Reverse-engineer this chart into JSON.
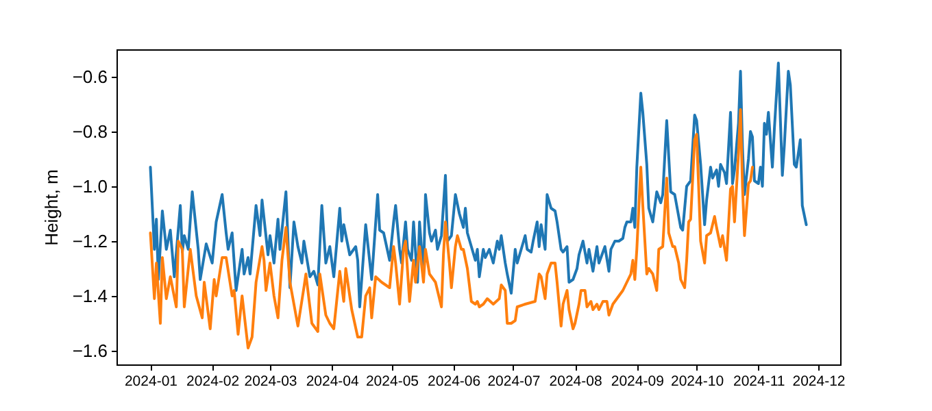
{
  "chart_data": {
    "type": "line",
    "ylabel": "Height, m",
    "xlim": [
      "2023-12-15",
      "2024-12-12"
    ],
    "ylim": [
      -1.65,
      -0.5
    ],
    "xticks": [
      {
        "value": "2024-01",
        "label": "2024-01"
      },
      {
        "value": "2024-02",
        "label": "2024-02"
      },
      {
        "value": "2024-03",
        "label": "2024-03"
      },
      {
        "value": "2024-04",
        "label": "2024-04"
      },
      {
        "value": "2024-05",
        "label": "2024-05"
      },
      {
        "value": "2024-06",
        "label": "2024-06"
      },
      {
        "value": "2024-07",
        "label": "2024-07"
      },
      {
        "value": "2024-08",
        "label": "2024-08"
      },
      {
        "value": "2024-09",
        "label": "2024-09"
      },
      {
        "value": "2024-10",
        "label": "2024-10"
      },
      {
        "value": "2024-11",
        "label": "2024-11"
      },
      {
        "value": "2024-12",
        "label": "2024-12"
      }
    ],
    "yticks": [
      {
        "value": -1.6,
        "label": "−1.6"
      },
      {
        "value": -1.4,
        "label": "−1.4"
      },
      {
        "value": -1.2,
        "label": "−1.2"
      },
      {
        "value": -1.0,
        "label": "−1.0"
      },
      {
        "value": -0.8,
        "label": "−0.8"
      },
      {
        "value": -0.6,
        "label": "−0.6"
      }
    ],
    "series": [
      {
        "color": "#1f77b4",
        "x": [
          "2024-01-01",
          "2024-01-03",
          "2024-01-04",
          "2024-01-05",
          "2024-01-07",
          "2024-01-09",
          "2024-01-11",
          "2024-01-13",
          "2024-01-16",
          "2024-01-17",
          "2024-01-18",
          "2024-01-20",
          "2024-01-22",
          "2024-01-25",
          "2024-01-26",
          "2024-01-29",
          "2024-02-01",
          "2024-02-03",
          "2024-02-06",
          "2024-02-08",
          "2024-02-09",
          "2024-02-11",
          "2024-02-13",
          "2024-02-16",
          "2024-02-17",
          "2024-02-19",
          "2024-02-20",
          "2024-02-23",
          "2024-02-25",
          "2024-02-26",
          "2024-02-29",
          "2024-03-01",
          "2024-03-03",
          "2024-03-05",
          "2024-03-06",
          "2024-03-09",
          "2024-03-11",
          "2024-03-13",
          "2024-03-15",
          "2024-03-17",
          "2024-03-18",
          "2024-03-21",
          "2024-03-23",
          "2024-03-25",
          "2024-03-27",
          "2024-03-29",
          "2024-03-31",
          "2024-04-02",
          "2024-04-05",
          "2024-04-06",
          "2024-04-07",
          "2024-04-10",
          "2024-04-13",
          "2024-04-14",
          "2024-04-15",
          "2024-04-18",
          "2024-04-21",
          "2024-04-24",
          "2024-04-25",
          "2024-04-27",
          "2024-04-30",
          "2024-05-02",
          "2024-05-03",
          "2024-05-05",
          "2024-05-06",
          "2024-05-08",
          "2024-05-09",
          "2024-05-11",
          "2024-05-12",
          "2024-05-14",
          "2024-05-15",
          "2024-05-17",
          "2024-05-18",
          "2024-05-20",
          "2024-05-21",
          "2024-05-23",
          "2024-05-24",
          "2024-05-26",
          "2024-05-28",
          "2024-05-29",
          "2024-05-31",
          "2024-06-02",
          "2024-06-04",
          "2024-06-06",
          "2024-06-07",
          "2024-06-08",
          "2024-06-10",
          "2024-06-12",
          "2024-06-13",
          "2024-06-14",
          "2024-06-16",
          "2024-06-17",
          "2024-06-19",
          "2024-06-21",
          "2024-06-23",
          "2024-06-24",
          "2024-06-25",
          "2024-06-27",
          "2024-06-28",
          "2024-06-30",
          "2024-07-02",
          "2024-07-03",
          "2024-07-05",
          "2024-07-07",
          "2024-07-08",
          "2024-07-10",
          "2024-07-11",
          "2024-07-13",
          "2024-07-14",
          "2024-07-15",
          "2024-07-17",
          "2024-07-18",
          "2024-07-20",
          "2024-07-22",
          "2024-07-23",
          "2024-07-25",
          "2024-07-26",
          "2024-07-28",
          "2024-07-29",
          "2024-07-31",
          "2024-08-02",
          "2024-08-03",
          "2024-08-05",
          "2024-08-07",
          "2024-08-08",
          "2024-08-10",
          "2024-08-12",
          "2024-08-13",
          "2024-08-15",
          "2024-08-16",
          "2024-08-18",
          "2024-08-19",
          "2024-08-21",
          "2024-08-23",
          "2024-08-25",
          "2024-08-26",
          "2024-08-27",
          "2024-08-29",
          "2024-08-30",
          "2024-08-31",
          "2024-09-01",
          "2024-09-03",
          "2024-09-04",
          "2024-09-06",
          "2024-09-07",
          "2024-09-09",
          "2024-09-11",
          "2024-09-13",
          "2024-09-14",
          "2024-09-16",
          "2024-09-18",
          "2024-09-20",
          "2024-09-21",
          "2024-09-23",
          "2024-09-24",
          "2024-09-26",
          "2024-09-28",
          "2024-09-30",
          "2024-10-01",
          "2024-10-03",
          "2024-10-05",
          "2024-10-06",
          "2024-10-08",
          "2024-10-09",
          "2024-10-11",
          "2024-10-12",
          "2024-10-13",
          "2024-10-15",
          "2024-10-16",
          "2024-10-18",
          "2024-10-19",
          "2024-10-20",
          "2024-10-22",
          "2024-10-23",
          "2024-10-24",
          "2024-10-25",
          "2024-10-27",
          "2024-10-28",
          "2024-10-29",
          "2024-10-30",
          "2024-11-01",
          "2024-11-02",
          "2024-11-03",
          "2024-11-04",
          "2024-11-05",
          "2024-11-06",
          "2024-11-08",
          "2024-11-09",
          "2024-11-11",
          "2024-11-13",
          "2024-11-14",
          "2024-11-16",
          "2024-11-17",
          "2024-11-19",
          "2024-11-20",
          "2024-11-22",
          "2024-11-23",
          "2024-11-25"
        ],
        "values": [
          -0.93,
          -1.23,
          -1.12,
          -1.34,
          -1.09,
          -1.23,
          -1.16,
          -1.33,
          -1.07,
          -1.24,
          -1.18,
          -1.23,
          -1.02,
          -1.23,
          -1.34,
          -1.21,
          -1.28,
          -1.13,
          -1.03,
          -1.17,
          -1.23,
          -1.17,
          -1.38,
          -1.23,
          -1.32,
          -1.26,
          -1.32,
          -1.07,
          -1.18,
          -1.05,
          -1.25,
          -1.18,
          -1.28,
          -1.12,
          -1.23,
          -1.02,
          -1.37,
          -1.13,
          -1.22,
          -1.28,
          -1.2,
          -1.33,
          -1.31,
          -1.36,
          -1.07,
          -1.28,
          -1.22,
          -1.33,
          -1.08,
          -1.2,
          -1.14,
          -1.25,
          -1.22,
          -1.27,
          -1.44,
          -1.14,
          -1.34,
          -1.03,
          -1.16,
          -1.17,
          -1.27,
          -1.13,
          -1.07,
          -1.23,
          -1.28,
          -1.13,
          -1.23,
          -1.27,
          -1.13,
          -1.35,
          -1.13,
          -1.32,
          -1.03,
          -1.17,
          -1.2,
          -1.16,
          -1.23,
          -1.18,
          -0.96,
          -1.2,
          -1.18,
          -1.03,
          -1.1,
          -1.15,
          -1.08,
          -1.17,
          -1.22,
          -1.27,
          -1.23,
          -1.33,
          -1.23,
          -1.26,
          -1.23,
          -1.28,
          -1.2,
          -1.23,
          -1.18,
          -1.28,
          -1.32,
          -1.39,
          -1.23,
          -1.28,
          -1.23,
          -1.18,
          -1.23,
          -1.24,
          -1.2,
          -1.13,
          -1.22,
          -1.14,
          -1.23,
          -1.03,
          -1.08,
          -1.09,
          -1.13,
          -1.23,
          -1.24,
          -1.22,
          -1.35,
          -1.34,
          -1.3,
          -1.25,
          -1.2,
          -1.28,
          -1.23,
          -1.31,
          -1.22,
          -1.28,
          -1.24,
          -1.22,
          -1.31,
          -1.23,
          -1.2,
          -1.2,
          -1.19,
          -1.15,
          -1.13,
          -1.13,
          -1.08,
          -1.15,
          -0.93,
          -0.66,
          -0.73,
          -0.92,
          -1.08,
          -1.13,
          -1.02,
          -1.06,
          -1.03,
          -0.76,
          -1.02,
          -1.03,
          -1.07,
          -1.15,
          -1.16,
          -1.0,
          -0.98,
          -0.74,
          -0.76,
          -0.92,
          -1.14,
          -1.05,
          -0.93,
          -0.97,
          -0.94,
          -1.0,
          -0.92,
          -0.95,
          -0.99,
          -0.73,
          -0.99,
          -0.94,
          -0.77,
          -0.58,
          -0.86,
          -1.03,
          -0.9,
          -0.8,
          -0.82,
          -0.98,
          -0.99,
          -0.93,
          -1.0,
          -0.77,
          -0.81,
          -0.73,
          -0.93,
          -0.79,
          -0.55,
          -0.96,
          -0.85,
          -0.58,
          -0.63,
          -0.92,
          -0.93,
          -0.83,
          -1.07,
          -1.14
        ]
      },
      {
        "color": "#ff7f0e",
        "x": [
          "2024-01-01",
          "2024-01-03",
          "2024-01-04",
          "2024-01-06",
          "2024-01-07",
          "2024-01-09",
          "2024-01-11",
          "2024-01-14",
          "2024-01-15",
          "2024-01-17",
          "2024-01-18",
          "2024-01-21",
          "2024-01-24",
          "2024-01-27",
          "2024-01-28",
          "2024-01-31",
          "2024-02-02",
          "2024-02-03",
          "2024-02-06",
          "2024-02-08",
          "2024-02-11",
          "2024-02-12",
          "2024-02-14",
          "2024-02-16",
          "2024-02-19",
          "2024-02-21",
          "2024-02-23",
          "2024-02-26",
          "2024-02-27",
          "2024-02-28",
          "2024-03-01",
          "2024-03-03",
          "2024-03-05",
          "2024-03-07",
          "2024-03-09",
          "2024-03-11",
          "2024-03-14",
          "2024-03-15",
          "2024-03-18",
          "2024-03-19",
          "2024-03-22",
          "2024-03-25",
          "2024-03-26",
          "2024-03-29",
          "2024-03-31",
          "2024-04-02",
          "2024-04-05",
          "2024-04-07",
          "2024-04-08",
          "2024-04-11",
          "2024-04-14",
          "2024-04-16",
          "2024-04-18",
          "2024-04-20",
          "2024-04-21",
          "2024-04-23",
          "2024-04-26",
          "2024-04-30",
          "2024-05-02",
          "2024-05-03",
          "2024-05-05",
          "2024-05-07",
          "2024-05-08",
          "2024-05-10",
          "2024-05-12",
          "2024-05-13",
          "2024-05-15",
          "2024-05-17",
          "2024-05-18",
          "2024-05-20",
          "2024-05-23",
          "2024-05-24",
          "2024-05-26",
          "2024-05-27",
          "2024-05-28",
          "2024-05-30",
          "2024-05-31",
          "2024-06-02",
          "2024-06-03",
          "2024-06-05",
          "2024-06-06",
          "2024-06-08",
          "2024-06-10",
          "2024-06-12",
          "2024-06-13",
          "2024-06-14",
          "2024-06-16",
          "2024-06-18",
          "2024-06-21",
          "2024-06-24",
          "2024-06-25",
          "2024-06-27",
          "2024-06-28",
          "2024-06-30",
          "2024-07-02",
          "2024-07-03",
          "2024-07-07",
          "2024-07-12",
          "2024-07-14",
          "2024-07-15",
          "2024-07-17",
          "2024-07-18",
          "2024-07-20",
          "2024-07-22",
          "2024-07-23",
          "2024-07-25",
          "2024-07-26",
          "2024-07-28",
          "2024-07-29",
          "2024-07-31",
          "2024-08-01",
          "2024-08-03",
          "2024-08-04",
          "2024-08-06",
          "2024-08-07",
          "2024-08-09",
          "2024-08-10",
          "2024-08-12",
          "2024-08-13",
          "2024-08-15",
          "2024-08-17",
          "2024-08-18",
          "2024-08-20",
          "2024-08-23",
          "2024-08-25",
          "2024-08-27",
          "2024-08-29",
          "2024-08-30",
          "2024-08-31",
          "2024-09-01",
          "2024-09-03",
          "2024-09-04",
          "2024-09-06",
          "2024-09-07",
          "2024-09-09",
          "2024-09-11",
          "2024-09-12",
          "2024-09-14",
          "2024-09-16",
          "2024-09-17",
          "2024-09-19",
          "2024-09-20",
          "2024-09-22",
          "2024-09-23",
          "2024-09-25",
          "2024-09-26",
          "2024-09-27",
          "2024-09-28",
          "2024-09-30",
          "2024-10-01",
          "2024-10-02",
          "2024-10-03",
          "2024-10-05",
          "2024-10-06",
          "2024-10-08",
          "2024-10-10",
          "2024-10-11",
          "2024-10-13",
          "2024-10-14",
          "2024-10-16",
          "2024-10-18",
          "2024-10-19",
          "2024-10-20",
          "2024-10-22",
          "2024-10-23",
          "2024-10-24",
          "2024-10-25",
          "2024-10-27",
          "2024-10-28",
          "2024-10-29"
        ],
        "values": [
          -1.17,
          -1.41,
          -1.28,
          -1.5,
          -1.26,
          -1.41,
          -1.33,
          -1.44,
          -1.2,
          -1.23,
          -1.44,
          -1.23,
          -1.4,
          -1.48,
          -1.35,
          -1.52,
          -1.34,
          -1.4,
          -1.26,
          -1.26,
          -1.4,
          -1.38,
          -1.54,
          -1.4,
          -1.59,
          -1.55,
          -1.35,
          -1.22,
          -1.27,
          -1.38,
          -1.28,
          -1.4,
          -1.48,
          -1.27,
          -1.15,
          -1.35,
          -1.47,
          -1.51,
          -1.37,
          -1.32,
          -1.5,
          -1.53,
          -1.32,
          -1.47,
          -1.5,
          -1.52,
          -1.31,
          -1.42,
          -1.3,
          -1.45,
          -1.55,
          -1.55,
          -1.4,
          -1.37,
          -1.48,
          -1.33,
          -1.35,
          -1.37,
          -1.22,
          -1.28,
          -1.43,
          -1.23,
          -1.2,
          -1.42,
          -1.27,
          -1.35,
          -1.22,
          -1.35,
          -1.23,
          -1.32,
          -1.35,
          -1.38,
          -1.44,
          -1.25,
          -1.13,
          -1.28,
          -1.37,
          -1.22,
          -1.18,
          -1.23,
          -1.23,
          -1.3,
          -1.42,
          -1.43,
          -1.42,
          -1.44,
          -1.43,
          -1.41,
          -1.43,
          -1.41,
          -1.36,
          -1.38,
          -1.5,
          -1.5,
          -1.49,
          -1.44,
          -1.43,
          -1.42,
          -1.32,
          -1.33,
          -1.41,
          -1.32,
          -1.28,
          -1.28,
          -1.35,
          -1.51,
          -1.43,
          -1.38,
          -1.45,
          -1.52,
          -1.5,
          -1.43,
          -1.38,
          -1.38,
          -1.44,
          -1.42,
          -1.45,
          -1.43,
          -1.45,
          -1.42,
          -1.42,
          -1.47,
          -1.43,
          -1.4,
          -1.38,
          -1.35,
          -1.32,
          -1.27,
          -1.34,
          -1.23,
          -0.93,
          -1.07,
          -1.32,
          -1.3,
          -1.32,
          -1.38,
          -1.23,
          -1.22,
          -0.97,
          -1.17,
          -1.22,
          -1.22,
          -1.28,
          -1.34,
          -1.37,
          -1.27,
          -1.13,
          -1.12,
          -0.83,
          -0.81,
          -1.0,
          -1.2,
          -1.28,
          -1.18,
          -1.17,
          -1.11,
          -1.15,
          -1.22,
          -1.18,
          -1.27,
          -1.01,
          -1.0,
          -1.13,
          -0.88,
          -0.72,
          -1.0,
          -1.18,
          -0.99,
          -0.98,
          -0.93
        ]
      }
    ]
  }
}
